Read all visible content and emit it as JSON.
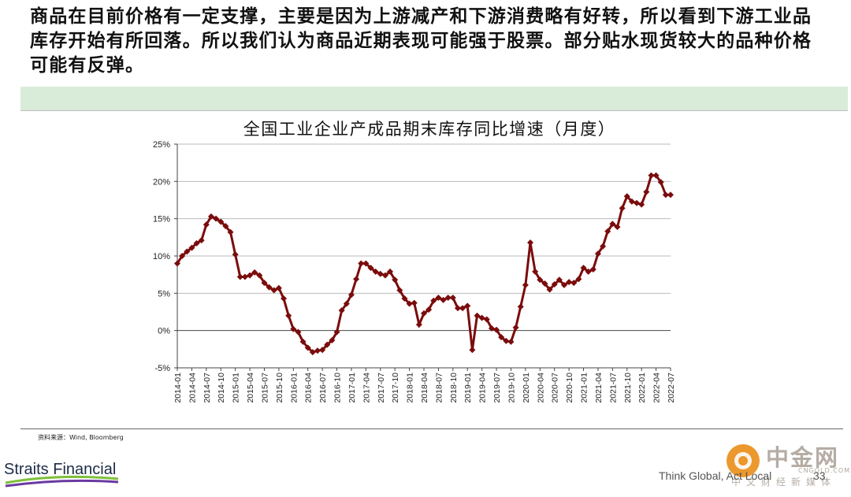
{
  "headline": "商品在目前价格有一定支撑，主要是因为上游减产和下游消费略有好转，所以看到下游工业品库存开始有所回落。所以我们认为商品近期表现可能强于股票。部分贴水现货较大的品种价格可能有反弹。",
  "source": "资料来源：Wind, Bloomberg",
  "logo": {
    "text": "Straits Financial"
  },
  "footer": {
    "tagline": "Think Global, Act Local",
    "page_number": "33"
  },
  "watermark": {
    "name": "中金网",
    "domain": "CNGOLD.COM.CN",
    "subtitle": "中文财经新媒体"
  },
  "colors": {
    "series": "#7b0c0c",
    "band": "#d9ecd9"
  },
  "chart_data": {
    "type": "line",
    "title": "全国工业企业产成品期末库存同比增速（月度）",
    "ylim": [
      -5,
      25
    ],
    "yticks": [
      -5,
      0,
      5,
      10,
      15,
      20,
      25
    ],
    "ytick_labels": [
      "-5%",
      "0%",
      "5%",
      "10%",
      "15%",
      "20%",
      "25%"
    ],
    "xtick_labels": [
      "2014-01",
      "2014-04",
      "2014-07",
      "2014-10",
      "2015-01",
      "2015-04",
      "2015-07",
      "2015-10",
      "2016-01",
      "2016-04",
      "2016-07",
      "2016-10",
      "2017-01",
      "2017-04",
      "2017-07",
      "2017-10",
      "2018-01",
      "2018-04",
      "2018-07",
      "2018-10",
      "2019-01",
      "2019-04",
      "2019-07",
      "2019-10",
      "2020-01",
      "2020-04",
      "2020-07",
      "2020-10",
      "2021-01",
      "2021-04",
      "2021-07",
      "2021-10",
      "2022-01",
      "2022-04",
      "2022-07"
    ],
    "grid": "horizontal",
    "series": [
      {
        "marker": "diamond",
        "x": [
          "2014-01",
          "2014-02",
          "2014-03",
          "2014-04",
          "2014-05",
          "2014-06",
          "2014-07",
          "2014-08",
          "2014-09",
          "2014-10",
          "2014-11",
          "2014-12",
          "2015-01",
          "2015-02",
          "2015-03",
          "2015-04",
          "2015-05",
          "2015-06",
          "2015-07",
          "2015-08",
          "2015-09",
          "2015-10",
          "2015-11",
          "2015-12",
          "2016-01",
          "2016-02",
          "2016-03",
          "2016-04",
          "2016-05",
          "2016-06",
          "2016-07",
          "2016-08",
          "2016-09",
          "2016-10",
          "2016-11",
          "2016-12",
          "2017-01",
          "2017-02",
          "2017-03",
          "2017-04",
          "2017-05",
          "2017-06",
          "2017-07",
          "2017-08",
          "2017-09",
          "2017-10",
          "2017-11",
          "2017-12",
          "2018-01",
          "2018-02",
          "2018-03",
          "2018-04",
          "2018-05",
          "2018-06",
          "2018-07",
          "2018-08",
          "2018-09",
          "2018-10",
          "2018-11",
          "2018-12",
          "2019-01",
          "2019-02",
          "2019-03",
          "2019-04",
          "2019-05",
          "2019-06",
          "2019-07",
          "2019-08",
          "2019-09",
          "2019-10",
          "2019-11",
          "2019-12",
          "2020-01",
          "2020-02",
          "2020-03",
          "2020-04",
          "2020-05",
          "2020-06",
          "2020-07",
          "2020-08",
          "2020-09",
          "2020-10",
          "2020-11",
          "2020-12",
          "2021-01",
          "2021-02",
          "2021-03",
          "2021-04",
          "2021-05",
          "2021-06",
          "2021-07",
          "2021-08",
          "2021-09",
          "2021-10",
          "2021-11",
          "2021-12",
          "2022-01",
          "2022-02",
          "2022-03",
          "2022-04",
          "2022-05",
          "2022-06",
          "2022-07"
        ],
        "values": [
          9.0,
          10.0,
          10.6,
          11.1,
          11.7,
          12.1,
          14.2,
          15.3,
          15.0,
          14.6,
          14.0,
          13.2,
          10.2,
          7.2,
          7.2,
          7.4,
          7.8,
          7.4,
          6.4,
          5.8,
          5.4,
          5.7,
          4.3,
          2.0,
          0.2,
          -0.2,
          -1.5,
          -2.3,
          -2.9,
          -2.7,
          -2.6,
          -1.9,
          -1.3,
          -0.2,
          2.7,
          3.6,
          4.8,
          6.9,
          9.0,
          9.0,
          8.4,
          7.9,
          7.6,
          7.4,
          7.9,
          6.8,
          5.4,
          4.3,
          3.6,
          3.7,
          0.8,
          2.3,
          2.8,
          4.0,
          4.4,
          4.1,
          4.4,
          4.4,
          3.0,
          3.0,
          3.3,
          -2.6,
          2.0,
          1.7,
          1.5,
          0.3,
          0.1,
          -0.9,
          -1.4,
          -1.5,
          0.4,
          3.2,
          6.1,
          11.8,
          7.9,
          6.8,
          6.3,
          5.5,
          6.2,
          6.8,
          6.1,
          6.5,
          6.4,
          6.9,
          8.4,
          7.9,
          8.2,
          10.3,
          11.3,
          13.3,
          14.3,
          13.9,
          16.4,
          18.0,
          17.3,
          17.1,
          16.9,
          18.6,
          20.8,
          20.8,
          19.9,
          18.2,
          18.2
        ]
      }
    ]
  }
}
